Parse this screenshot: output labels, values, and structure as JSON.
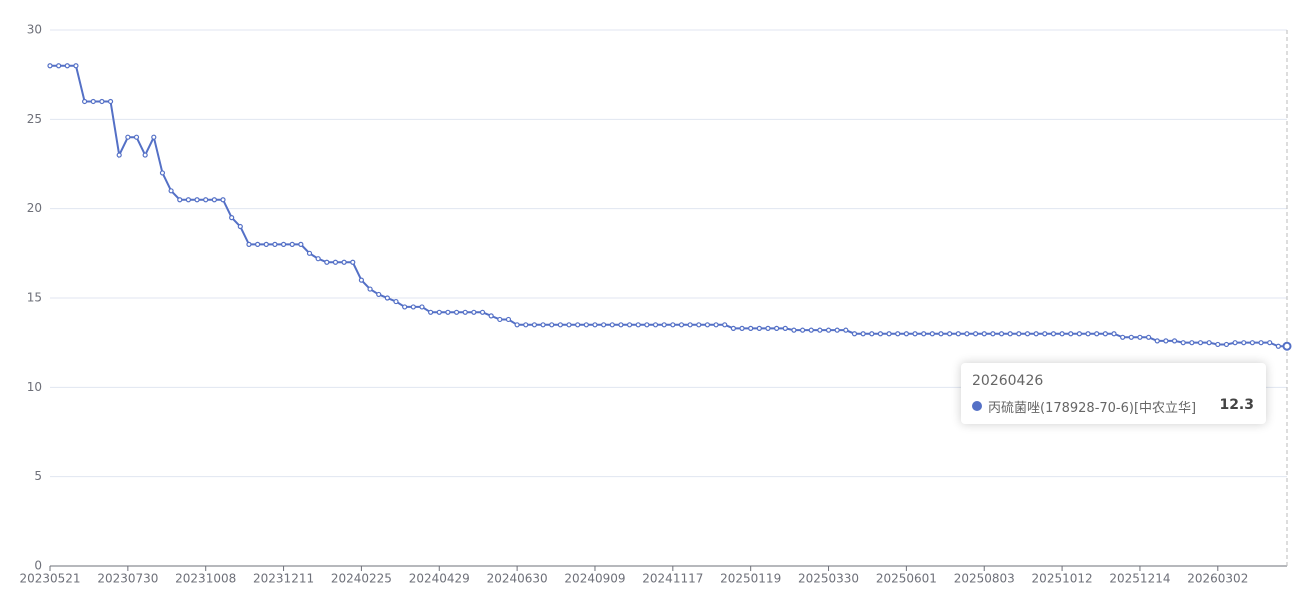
{
  "chart_data": {
    "type": "line",
    "categories": [
      "20230521",
      null,
      null,
      null,
      null,
      null,
      null,
      null,
      null,
      "20230730",
      null,
      null,
      null,
      null,
      null,
      null,
      null,
      null,
      "20231008",
      null,
      null,
      null,
      null,
      null,
      null,
      null,
      null,
      "20231211",
      null,
      null,
      null,
      null,
      null,
      null,
      null,
      null,
      "20240225",
      null,
      null,
      null,
      null,
      null,
      null,
      null,
      null,
      "20240429",
      null,
      null,
      null,
      null,
      null,
      null,
      null,
      null,
      "20240630",
      null,
      null,
      null,
      null,
      null,
      null,
      null,
      null,
      "20240909",
      null,
      null,
      null,
      null,
      null,
      null,
      null,
      null,
      "20241117",
      null,
      null,
      null,
      null,
      null,
      null,
      null,
      null,
      "20250119",
      null,
      null,
      null,
      null,
      null,
      null,
      null,
      null,
      "20250330",
      null,
      null,
      null,
      null,
      null,
      null,
      null,
      null,
      "20250601",
      null,
      null,
      null,
      null,
      null,
      null,
      null,
      null,
      "20250803",
      null,
      null,
      null,
      null,
      null,
      null,
      null,
      null,
      "20251012",
      null,
      null,
      null,
      null,
      null,
      null,
      null,
      null,
      "20251214",
      null,
      null,
      null,
      null,
      null,
      null,
      null,
      null,
      "20260302",
      null,
      null,
      null,
      null,
      null,
      null,
      null,
      "20260426"
    ],
    "series": [
      {
        "name": "丙硫菌唑(178928-70-6)[中农立华]",
        "color": "#5470c6",
        "values": [
          28,
          28,
          28,
          28,
          26,
          26,
          26,
          26,
          23,
          24,
          24,
          23,
          24,
          22,
          21,
          20.5,
          20.5,
          20.5,
          20.5,
          20.5,
          20.5,
          19.5,
          19,
          18,
          18,
          18,
          18,
          18,
          18,
          18,
          17.5,
          17.2,
          17,
          17,
          17,
          17,
          16,
          15.5,
          15.2,
          15,
          14.8,
          14.5,
          14.5,
          14.5,
          14.2,
          14.2,
          14.2,
          14.2,
          14.2,
          14.2,
          14.2,
          14,
          13.8,
          13.8,
          13.5,
          13.5,
          13.5,
          13.5,
          13.5,
          13.5,
          13.5,
          13.5,
          13.5,
          13.5,
          13.5,
          13.5,
          13.5,
          13.5,
          13.5,
          13.5,
          13.5,
          13.5,
          13.5,
          13.5,
          13.5,
          13.5,
          13.5,
          13.5,
          13.5,
          13.3,
          13.3,
          13.3,
          13.3,
          13.3,
          13.3,
          13.3,
          13.2,
          13.2,
          13.2,
          13.2,
          13.2,
          13.2,
          13.2,
          13,
          13,
          13,
          13,
          13,
          13,
          13,
          13,
          13,
          13,
          13,
          13,
          13,
          13,
          13,
          13,
          13,
          13,
          13,
          13,
          13,
          13,
          13,
          13,
          13,
          13,
          13,
          13,
          13,
          13,
          13,
          12.8,
          12.8,
          12.8,
          12.8,
          12.6,
          12.6,
          12.6,
          12.5,
          12.5,
          12.5,
          12.5,
          12.4,
          12.4,
          12.5,
          12.5,
          12.5,
          12.5,
          12.5,
          12.3,
          12.3
        ]
      }
    ],
    "ylim": [
      0,
      30
    ],
    "yticks": [
      0,
      5,
      10,
      15,
      20,
      25,
      30
    ],
    "grid": true
  }
}
